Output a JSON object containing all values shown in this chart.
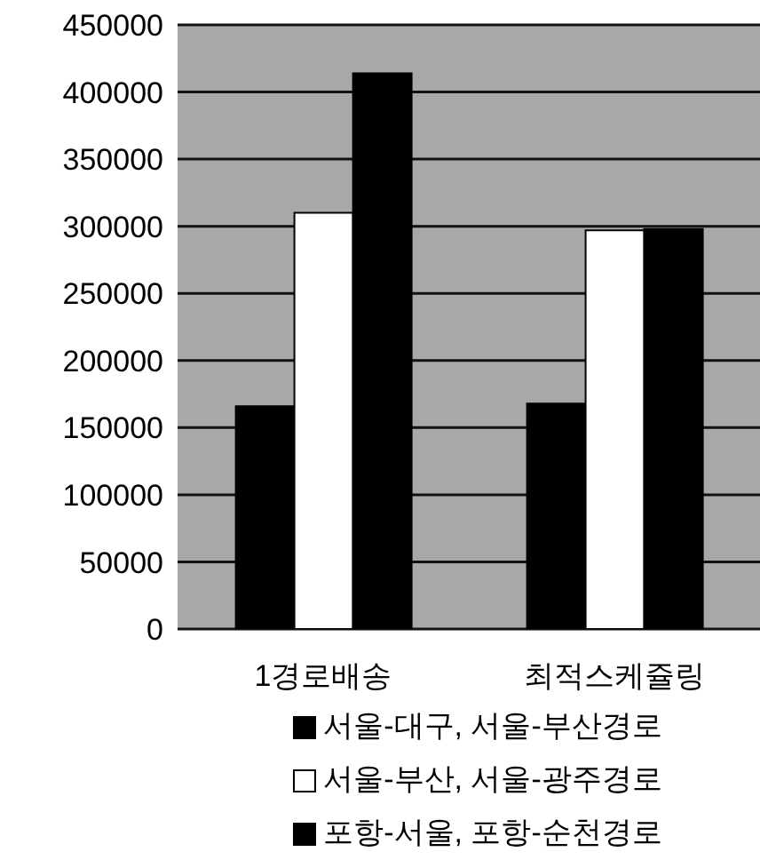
{
  "chart_data": {
    "type": "bar",
    "categories": [
      "1경로배송",
      "최적스케쥴링"
    ],
    "series": [
      {
        "name": "서울-대구, 서울-부산경로",
        "color": "#000000",
        "values": [
          166000,
          168000
        ]
      },
      {
        "name": "서울-부산, 서울-광주경로",
        "color": "#ffffff",
        "values": [
          310000,
          297000
        ]
      },
      {
        "name": "포항-서울, 포항-순천경로",
        "color": "#000000",
        "values": [
          414000,
          298000
        ]
      }
    ],
    "ylim": [
      0,
      450000
    ],
    "yticks": [
      0,
      50000,
      100000,
      150000,
      200000,
      250000,
      300000,
      350000,
      400000,
      450000
    ],
    "grid": "y",
    "legend": "bottom"
  }
}
